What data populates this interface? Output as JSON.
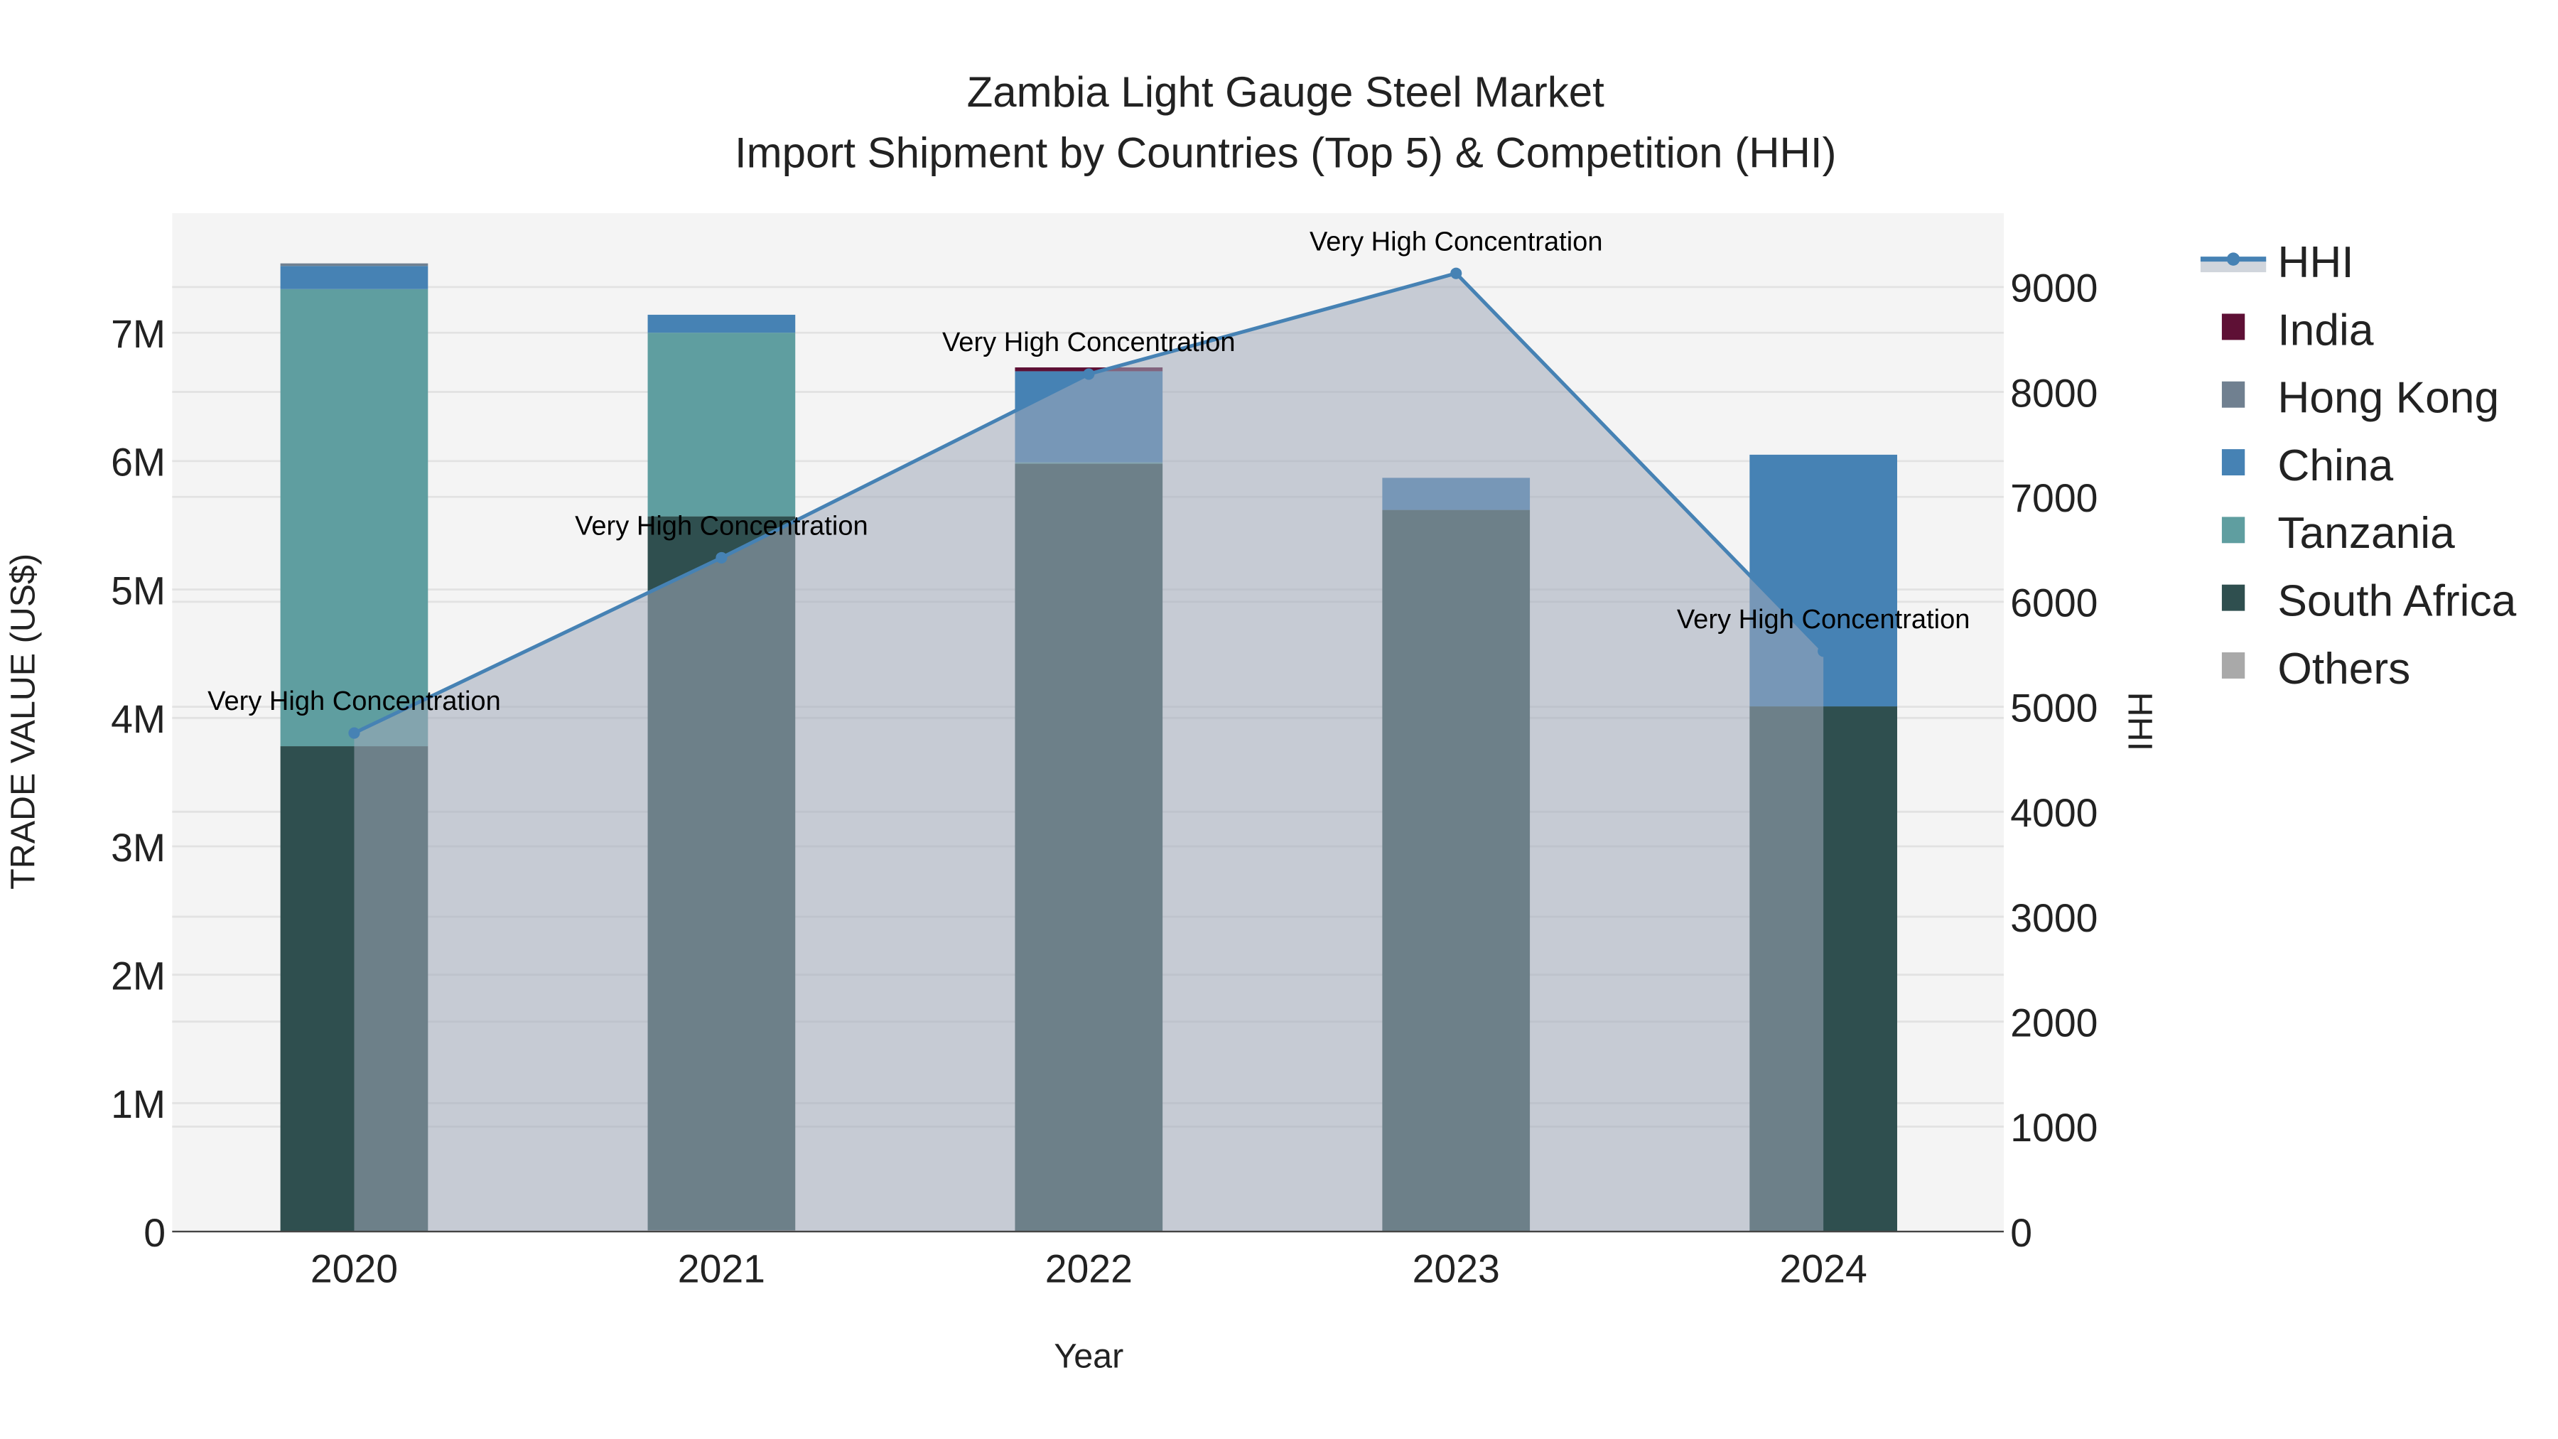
{
  "chart_data": {
    "type": "bar",
    "stacked": true,
    "title": "Zambia Light Gauge Steel Market",
    "subtitle": "Import Shipment by Countries (Top 5) & Competition (HHI)",
    "xlabel": "Year",
    "ylabel": "TRADE VALUE (US$)",
    "y2label": "HHI",
    "categories": [
      "2020",
      "2021",
      "2022",
      "2023",
      "2024"
    ],
    "ylim": [
      0,
      7900000
    ],
    "y2lim": [
      0,
      9700
    ],
    "yticks": [
      {
        "v": 0,
        "label": "0"
      },
      {
        "v": 1000000,
        "label": "1M"
      },
      {
        "v": 2000000,
        "label": "2M"
      },
      {
        "v": 3000000,
        "label": "3M"
      },
      {
        "v": 4000000,
        "label": "4M"
      },
      {
        "v": 5000000,
        "label": "5M"
      },
      {
        "v": 6000000,
        "label": "6M"
      },
      {
        "v": 7000000,
        "label": "7M"
      }
    ],
    "y2ticks": [
      {
        "v": 0,
        "label": "0"
      },
      {
        "v": 1000,
        "label": "1000"
      },
      {
        "v": 2000,
        "label": "2000"
      },
      {
        "v": 3000,
        "label": "3000"
      },
      {
        "v": 4000,
        "label": "4000"
      },
      {
        "v": 5000,
        "label": "5000"
      },
      {
        "v": 6000,
        "label": "6000"
      },
      {
        "v": 7000,
        "label": "7000"
      },
      {
        "v": 8000,
        "label": "8000"
      },
      {
        "v": 9000,
        "label": "9000"
      }
    ],
    "series": [
      {
        "name": "Others",
        "color": "#a9a9a9",
        "values": [
          0,
          10000,
          0,
          0,
          0
        ]
      },
      {
        "name": "South Africa",
        "color": "#2f4f4f",
        "values": [
          3780000,
          5560000,
          5980000,
          5620000,
          4090000
        ]
      },
      {
        "name": "Tanzania",
        "color": "#5f9ea0",
        "values": [
          3560000,
          1430000,
          10000,
          0,
          0
        ]
      },
      {
        "name": "China",
        "color": "#4682b4",
        "values": [
          180000,
          140000,
          710000,
          250000,
          1960000
        ]
      },
      {
        "name": "Hong Kong",
        "color": "#708090",
        "values": [
          20000,
          0,
          0,
          0,
          0
        ]
      },
      {
        "name": "India",
        "color": "#5e1035",
        "values": [
          0,
          0,
          30000,
          0,
          0
        ]
      }
    ],
    "hhi": {
      "name": "HHI",
      "color": "#4682b4",
      "fill": "rgba(160,170,185,0.55)",
      "values": [
        4750,
        6420,
        8170,
        9130,
        5530
      ],
      "annotations": [
        "Very High Concentration",
        "Very High Concentration",
        "Very High Concentration",
        "Very High Concentration",
        "Very High Concentration"
      ]
    },
    "legend": [
      "HHI",
      "India",
      "Hong Kong",
      "China",
      "Tanzania",
      "South Africa",
      "Others"
    ],
    "legend_position": "right",
    "grid": true
  }
}
